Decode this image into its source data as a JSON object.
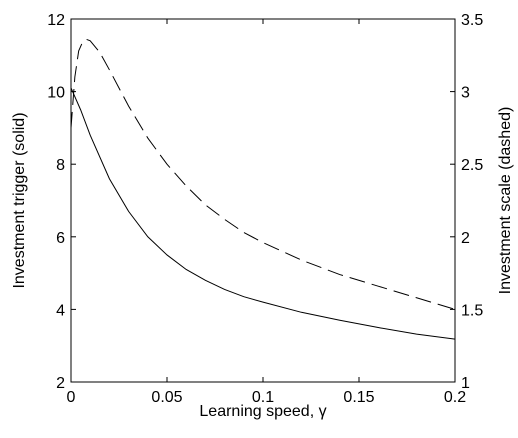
{
  "chart_data": {
    "type": "line",
    "xlabel": "Learning speed, γ",
    "ylabel_left": "Investment trigger (solid)",
    "ylabel_right": "Investment scale (dashed)",
    "xlim": [
      0,
      0.2
    ],
    "ylim_left": [
      2,
      12
    ],
    "ylim_right": [
      1,
      3.5
    ],
    "x_ticks": [
      0,
      0.05,
      0.1,
      0.15,
      0.2
    ],
    "x_tick_labels": [
      "0",
      "0.05",
      "0.1",
      "0.15",
      "0.2"
    ],
    "y_ticks_left": [
      2,
      4,
      6,
      8,
      10,
      12
    ],
    "y_tick_labels_left": [
      "2",
      "4",
      "6",
      "8",
      "10",
      "12"
    ],
    "y_ticks_right": [
      1,
      1.5,
      2,
      2.5,
      3,
      3.5
    ],
    "y_tick_labels_right": [
      "1",
      "1.5",
      "2",
      "2.5",
      "3",
      "3.5"
    ],
    "grid": false,
    "series": [
      {
        "style": "solid",
        "axis": "left",
        "color": "#000000",
        "x": [
          0,
          0.005,
          0.01,
          0.02,
          0.03,
          0.04,
          0.05,
          0.06,
          0.07,
          0.08,
          0.09,
          0.1,
          0.12,
          0.14,
          0.16,
          0.18,
          0.2
        ],
        "y": [
          10.1,
          9.5,
          8.8,
          7.6,
          6.7,
          6.0,
          5.5,
          5.1,
          4.8,
          4.55,
          4.35,
          4.2,
          3.92,
          3.7,
          3.5,
          3.32,
          3.18
        ]
      },
      {
        "style": "dashed",
        "axis": "right",
        "color": "#000000",
        "x": [
          0,
          0.002,
          0.004,
          0.006,
          0.008,
          0.01,
          0.015,
          0.02,
          0.03,
          0.04,
          0.05,
          0.06,
          0.07,
          0.08,
          0.09,
          0.1,
          0.12,
          0.14,
          0.16,
          0.18,
          0.2
        ],
        "y": [
          2.75,
          3.1,
          3.28,
          3.34,
          3.36,
          3.35,
          3.27,
          3.15,
          2.9,
          2.68,
          2.5,
          2.35,
          2.22,
          2.12,
          2.03,
          1.96,
          1.84,
          1.74,
          1.66,
          1.58,
          1.5
        ]
      }
    ]
  }
}
